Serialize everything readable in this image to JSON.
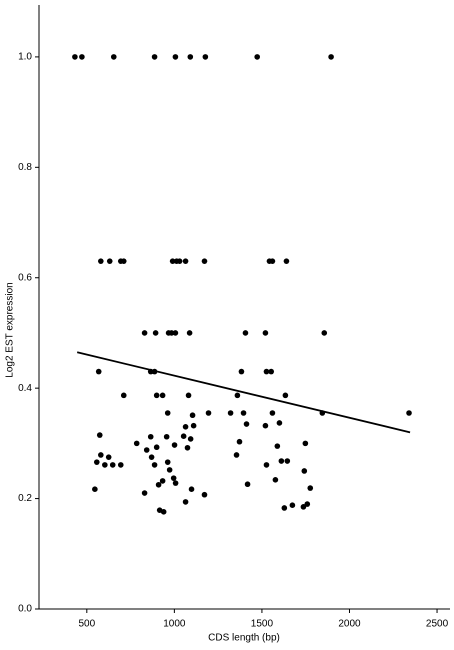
{
  "chart_data": {
    "type": "scatter",
    "x_label": "CDS length (bp)",
    "y_label": "Log2 EST expression",
    "color": "#000000",
    "x": [
      432,
      472,
      654,
      887,
      1006,
      1091,
      1177,
      1473,
      1895,
      580,
      631,
      694,
      711,
      990,
      1013,
      1030,
      1064,
      1172,
      1543,
      1560,
      1640,
      830,
      893,
      967,
      984,
      1006,
      1087,
      1406,
      1520,
      1856,
      568,
      865,
      887,
      1383,
      1526,
      1553,
      711,
      899,
      933,
      1081,
      1360,
      1634,
      574,
      580,
      557,
      546,
      603,
      648,
      694,
      625,
      785,
      842,
      865,
      870,
      899,
      887,
      830,
      910,
      916,
      939,
      933,
      962,
      956,
      962,
      973,
      996,
      1007,
      1001,
      1064,
      1053,
      1075,
      1104,
      1093,
      1098,
      1064,
      1110,
      1172,
      1195,
      1321,
      1355,
      1372,
      1395,
      1412,
      1418,
      1520,
      1526,
      1560,
      1577,
      1588,
      1600,
      1611,
      1645,
      1628,
      1674,
      1742,
      1748,
      1737,
      1759,
      1776,
      1845,
      2340
    ],
    "y": [
      1.0,
      1.0,
      1.0,
      1.0,
      1.0,
      1.0,
      1.0,
      1.0,
      1.0,
      0.63,
      0.63,
      0.63,
      0.63,
      0.63,
      0.63,
      0.63,
      0.63,
      0.63,
      0.63,
      0.63,
      0.63,
      0.5,
      0.5,
      0.5,
      0.5,
      0.5,
      0.5,
      0.5,
      0.5,
      0.5,
      0.43,
      0.43,
      0.43,
      0.43,
      0.43,
      0.43,
      0.387,
      0.387,
      0.387,
      0.387,
      0.387,
      0.387,
      0.315,
      0.279,
      0.266,
      0.217,
      0.261,
      0.261,
      0.261,
      0.275,
      0.3,
      0.288,
      0.312,
      0.275,
      0.293,
      0.261,
      0.21,
      0.225,
      0.179,
      0.176,
      0.232,
      0.355,
      0.312,
      0.266,
      0.252,
      0.237,
      0.228,
      0.297,
      0.33,
      0.313,
      0.292,
      0.351,
      0.308,
      0.217,
      0.194,
      0.332,
      0.207,
      0.355,
      0.355,
      0.279,
      0.303,
      0.355,
      0.335,
      0.226,
      0.332,
      0.261,
      0.355,
      0.234,
      0.295,
      0.337,
      0.268,
      0.268,
      0.183,
      0.188,
      0.25,
      0.3,
      0.185,
      0.19,
      0.219,
      0.355,
      0.355
    ],
    "trend": {
      "x": [
        445,
        2346
      ],
      "y": [
        0.465,
        0.32
      ]
    },
    "xlim": [
      227,
      2574
    ],
    "ylim": [
      0,
      1.094
    ],
    "xticks": [
      500,
      1000,
      1500,
      2000,
      2500
    ],
    "yticks": [
      {
        "value": 0,
        "label": "0.0"
      },
      0.2,
      0.4,
      0.6,
      0.8,
      {
        "value": 1,
        "label": "1.0"
      }
    ]
  }
}
